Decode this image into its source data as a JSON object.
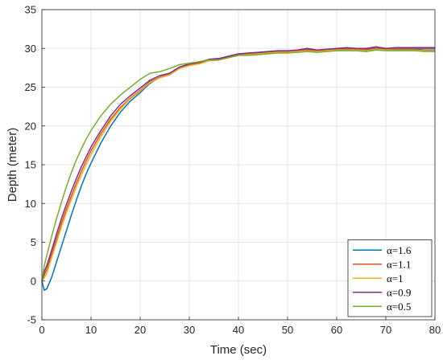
{
  "chart_data": {
    "type": "line",
    "xlabel": "Time (sec)",
    "ylabel": "Depth (meter)",
    "xlim": [
      0,
      80
    ],
    "ylim": [
      -5,
      35
    ],
    "xticks": [
      0,
      10,
      20,
      30,
      40,
      50,
      60,
      70,
      80
    ],
    "yticks": [
      -5,
      0,
      5,
      10,
      15,
      20,
      25,
      30,
      35
    ],
    "grid": true,
    "legend_position": "bottom-right",
    "series": [
      {
        "name": "α=1.6",
        "color": "#0072BD",
        "x": [
          0,
          0.5,
          1,
          2,
          3,
          4,
          5,
          6,
          7,
          8,
          9,
          10,
          12,
          14,
          16,
          18,
          20,
          22,
          24,
          26,
          28,
          30,
          32,
          34,
          36,
          38,
          40,
          42,
          44,
          46,
          48,
          50,
          52,
          54,
          56,
          58,
          60,
          62,
          64,
          66,
          68,
          70,
          72,
          74,
          76,
          78,
          80
        ],
        "y": [
          0,
          -1.2,
          -1.0,
          0.5,
          2.5,
          4.5,
          6.5,
          8.5,
          10.4,
          12.2,
          13.8,
          15.2,
          17.8,
          20.0,
          21.8,
          23.2,
          24.3,
          25.5,
          26.3,
          26.6,
          27.4,
          27.8,
          28.1,
          28.5,
          28.6,
          28.9,
          29.2,
          29.2,
          29.3,
          29.4,
          29.5,
          29.6,
          29.6,
          29.8,
          29.6,
          29.7,
          29.8,
          29.9,
          29.8,
          29.8,
          30.0,
          29.8,
          29.9,
          29.9,
          29.9,
          29.8,
          29.8
        ]
      },
      {
        "name": "α=1.1",
        "color": "#D95319",
        "x": [
          0,
          0.5,
          1,
          2,
          3,
          4,
          5,
          6,
          7,
          8,
          9,
          10,
          12,
          14,
          16,
          18,
          20,
          22,
          24,
          26,
          28,
          30,
          32,
          34,
          36,
          38,
          40,
          42,
          44,
          46,
          48,
          50,
          52,
          54,
          56,
          58,
          60,
          62,
          64,
          66,
          68,
          70,
          72,
          74,
          76,
          78,
          80
        ],
        "y": [
          0,
          0.8,
          1.5,
          3.5,
          5.5,
          7.5,
          9.3,
          11.0,
          12.6,
          14.1,
          15.5,
          16.8,
          19.0,
          20.9,
          22.4,
          23.6,
          24.6,
          25.7,
          26.3,
          26.7,
          27.5,
          27.9,
          28.1,
          28.5,
          28.6,
          28.9,
          29.2,
          29.3,
          29.4,
          29.5,
          29.6,
          29.6,
          29.7,
          29.9,
          29.7,
          29.8,
          29.9,
          30.0,
          29.9,
          29.9,
          30.1,
          29.9,
          30.0,
          30.0,
          30.0,
          30.0,
          30.0
        ]
      },
      {
        "name": "α=1",
        "color": "#EDB120",
        "x": [
          0,
          0.5,
          1,
          2,
          3,
          4,
          5,
          6,
          7,
          8,
          9,
          10,
          12,
          14,
          16,
          18,
          20,
          22,
          24,
          26,
          28,
          30,
          32,
          34,
          36,
          38,
          40,
          42,
          44,
          46,
          48,
          50,
          52,
          54,
          56,
          58,
          60,
          62,
          64,
          66,
          68,
          70,
          72,
          74,
          76,
          78,
          80
        ],
        "y": [
          0,
          0.4,
          1.0,
          3.0,
          5.0,
          7.0,
          8.8,
          10.5,
          12.1,
          13.6,
          15.0,
          16.3,
          18.6,
          20.6,
          22.2,
          23.5,
          24.5,
          25.6,
          26.2,
          26.6,
          27.4,
          27.8,
          28.0,
          28.4,
          28.5,
          28.8,
          29.1,
          29.2,
          29.3,
          29.4,
          29.5,
          29.5,
          29.6,
          29.7,
          29.6,
          29.7,
          29.8,
          29.8,
          29.8,
          29.7,
          29.9,
          29.8,
          29.8,
          29.8,
          29.8,
          29.7,
          29.7
        ]
      },
      {
        "name": "α=0.9",
        "color": "#7E2F8E",
        "x": [
          0,
          0.5,
          1,
          2,
          3,
          4,
          5,
          6,
          7,
          8,
          9,
          10,
          12,
          14,
          16,
          18,
          20,
          22,
          24,
          26,
          28,
          30,
          32,
          34,
          36,
          38,
          40,
          42,
          44,
          46,
          48,
          50,
          52,
          54,
          56,
          58,
          60,
          62,
          64,
          66,
          68,
          70,
          72,
          74,
          76,
          78,
          80
        ],
        "y": [
          0,
          1.2,
          2.0,
          4.0,
          6.1,
          8.1,
          9.9,
          11.6,
          13.2,
          14.7,
          16.0,
          17.3,
          19.4,
          21.3,
          22.8,
          23.9,
          24.9,
          25.9,
          26.5,
          26.8,
          27.6,
          28.0,
          28.2,
          28.6,
          28.7,
          29.0,
          29.3,
          29.4,
          29.5,
          29.6,
          29.7,
          29.7,
          29.8,
          30.0,
          29.8,
          29.9,
          30.0,
          30.1,
          30.0,
          30.0,
          30.2,
          30.0,
          30.1,
          30.1,
          30.1,
          30.1,
          30.1
        ]
      },
      {
        "name": "α=0.5",
        "color": "#77AC30",
        "x": [
          0,
          0.5,
          1,
          2,
          3,
          4,
          5,
          6,
          7,
          8,
          9,
          10,
          12,
          14,
          16,
          18,
          20,
          22,
          24,
          26,
          28,
          30,
          32,
          34,
          36,
          38,
          40,
          42,
          44,
          46,
          48,
          50,
          52,
          54,
          56,
          58,
          60,
          62,
          64,
          66,
          68,
          70,
          72,
          74,
          76,
          78,
          80
        ],
        "y": [
          0,
          2.0,
          3.3,
          5.8,
          8.1,
          10.2,
          12.2,
          14.0,
          15.6,
          17.0,
          18.3,
          19.4,
          21.3,
          22.8,
          24.0,
          25.0,
          26.0,
          26.8,
          27.0,
          27.4,
          27.9,
          28.1,
          28.3,
          28.5,
          28.5,
          28.8,
          29.1,
          29.1,
          29.2,
          29.3,
          29.4,
          29.4,
          29.5,
          29.6,
          29.5,
          29.6,
          29.7,
          29.7,
          29.7,
          29.6,
          29.8,
          29.7,
          29.7,
          29.7,
          29.7,
          29.6,
          29.6
        ]
      }
    ]
  }
}
